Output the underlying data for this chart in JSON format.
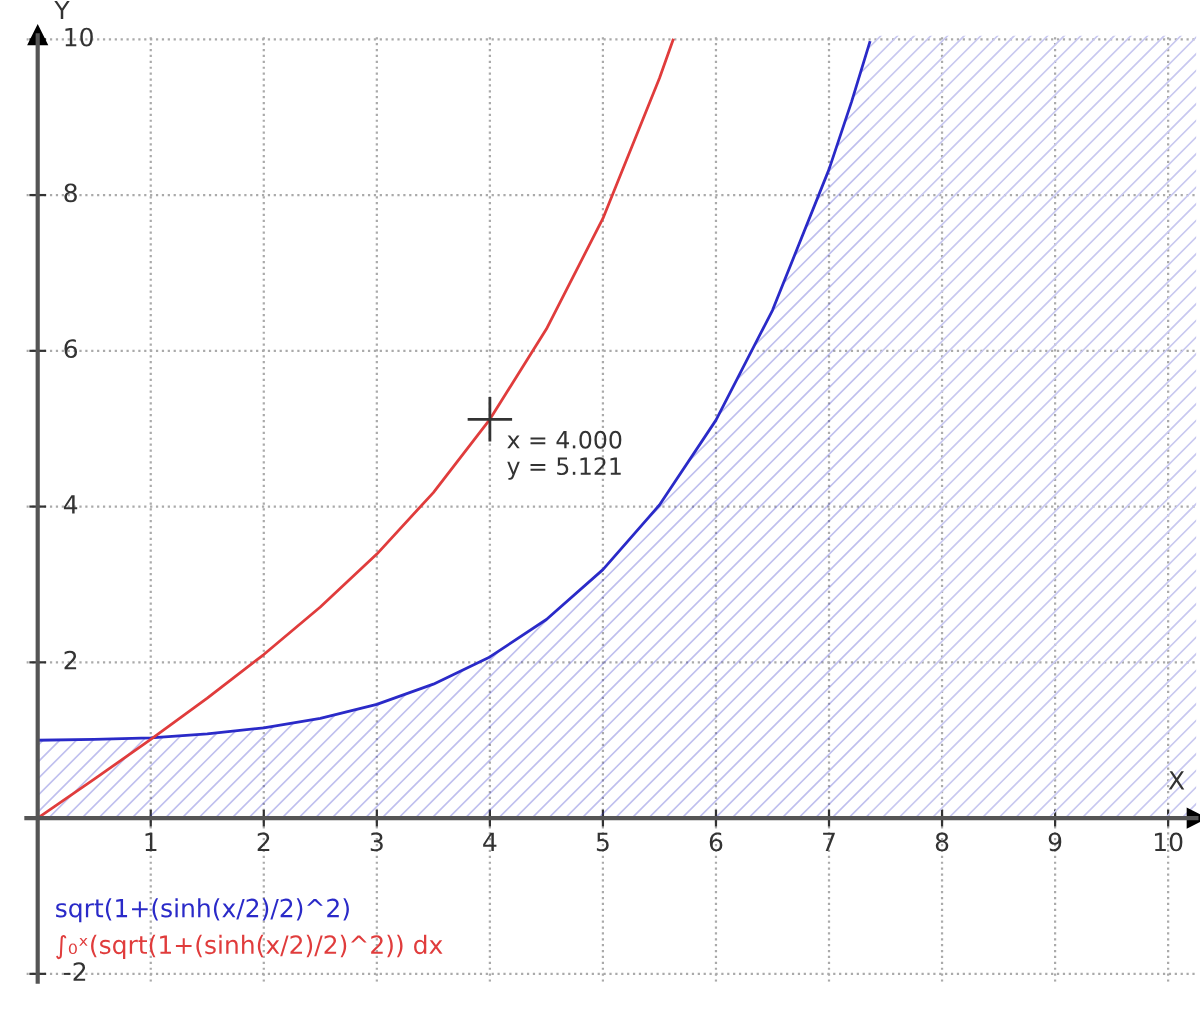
{
  "chart_data": {
    "type": "line",
    "xlabel": "X",
    "ylabel": "Y",
    "xlim": [
      -0.1,
      10.25
    ],
    "ylim": [
      -2.1,
      10.05
    ],
    "xticks": [
      1,
      2,
      3,
      4,
      5,
      6,
      7,
      8,
      9,
      10
    ],
    "yticks": [
      -2,
      2,
      4,
      6,
      8,
      10
    ],
    "grid": true,
    "legend": "bottom left",
    "marker": "none",
    "line_style": "solid",
    "series": [
      {
        "name": "sqrt(1+(sinh(x/2)/2)^2)",
        "type": "area",
        "color": "#2a2ac8",
        "x": [
          0,
          0.5,
          1,
          1.5,
          2,
          2.5,
          3,
          3.5,
          4,
          4.5,
          5,
          5.5,
          6,
          6.5,
          7,
          7.2,
          7.36
        ],
        "values": [
          1.0,
          1.01,
          1.03,
          1.08,
          1.16,
          1.28,
          1.46,
          1.72,
          2.07,
          2.55,
          3.19,
          4.02,
          5.11,
          6.52,
          8.33,
          9.2,
          9.96
        ]
      },
      {
        "name": "∫₀ˣ(sqrt(1+(sinh(x/2)/2)^2)) dx",
        "color": "#e03c3c",
        "x": [
          0,
          0.5,
          1,
          1.5,
          2,
          2.5,
          3,
          3.5,
          4,
          4.5,
          5,
          5.5,
          5.62
        ],
        "values": [
          0,
          0.5,
          1.01,
          1.54,
          2.1,
          2.71,
          3.39,
          4.18,
          5.12,
          6.28,
          7.7,
          9.5,
          9.99
        ]
      }
    ],
    "bands": [
      {
        "axis": "x",
        "from": 7.36,
        "to": 10.25,
        "color": "#c8c8f0"
      }
    ],
    "annotations": [
      {
        "text": "x = 4.000\ny = 5.121",
        "x": 4,
        "y": 5.121
      }
    ]
  }
}
